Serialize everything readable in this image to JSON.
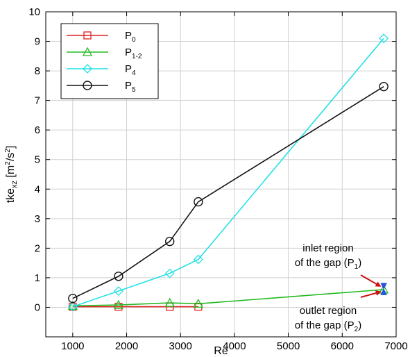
{
  "chart_data": {
    "type": "line",
    "xlabel": "Re",
    "ylabel": {
      "base": "tke",
      "sub": "xz",
      "unit_pre": " [m",
      "sup1": "2",
      "unit_mid": "/s",
      "sup2": "2",
      "unit_post": "]"
    },
    "xlim": [
      500,
      7000
    ],
    "ylim": [
      -1,
      10
    ],
    "x_ticks": [
      1000,
      2000,
      3000,
      4000,
      5000,
      6000,
      7000
    ],
    "y_ticks": [
      -1,
      0,
      1,
      2,
      3,
      4,
      5,
      6,
      7,
      8,
      9,
      10
    ],
    "x_tick_labels": [
      "1000",
      "2000",
      "3000",
      "4000",
      "5000",
      "6000",
      "7000"
    ],
    "y_tick_labels": [
      "",
      "0",
      "1",
      "2",
      "3",
      "4",
      "5",
      "6",
      "7",
      "8",
      "9",
      "10"
    ],
    "grid": true,
    "legend_position": "top-left",
    "series": [
      {
        "name": "P",
        "sub": "0",
        "color": "#e02020",
        "marker": "square",
        "x": [
          1000,
          1850,
          2800,
          3330
        ],
        "y": [
          0.02,
          0.02,
          0.02,
          0.02
        ]
      },
      {
        "name": "P",
        "sub": "1-2",
        "color": "#22bb22",
        "marker": "triangle",
        "x": [
          1000,
          1850,
          2800,
          3330,
          6770
        ],
        "y": [
          0.05,
          0.08,
          0.15,
          0.12,
          0.6
        ]
      },
      {
        "name": "P",
        "sub": "4",
        "color": "#22e0e6",
        "marker": "diamond",
        "x": [
          1000,
          1850,
          2800,
          3330,
          6770
        ],
        "y": [
          0.02,
          0.55,
          1.15,
          1.62,
          9.1
        ]
      },
      {
        "name": "P",
        "sub": "5",
        "color": "#111111",
        "marker": "circle",
        "x": [
          1000,
          1850,
          2800,
          3330,
          6770
        ],
        "y": [
          0.3,
          1.05,
          2.23,
          3.57,
          7.47
        ]
      }
    ],
    "blue_markers": {
      "color": "#2255dd",
      "points": [
        {
          "x": 6770,
          "y": 0.72,
          "shape": "triangle-down"
        },
        {
          "x": 6770,
          "y": 0.52,
          "shape": "triangle-up"
        }
      ]
    },
    "annotations": [
      {
        "lines": [
          "inlet region",
          "of the gap (P",
          "1",
          ")"
        ],
        "arrow_to": [
          6740,
          0.72
        ],
        "arrow_color": "#cc1111"
      },
      {
        "lines": [
          "outlet region",
          "of the gap (P",
          "2",
          ")"
        ],
        "arrow_to": [
          6740,
          0.52
        ],
        "arrow_color": "#cc1111"
      }
    ]
  }
}
